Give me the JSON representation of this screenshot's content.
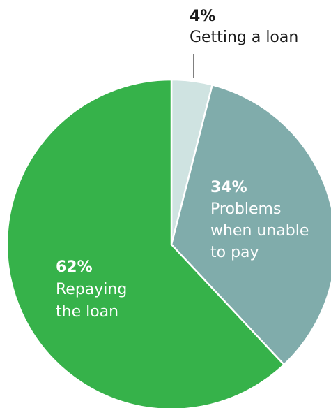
{
  "chart_data": {
    "type": "pie",
    "start_angle_deg": 0,
    "direction": "clockwise",
    "slices": [
      {
        "percent_label": "4%",
        "value": 4,
        "label_lines": [
          "Getting a loan"
        ],
        "color": "#cfe3e1",
        "text_color": "#1a1a1a"
      },
      {
        "percent_label": "34%",
        "value": 34,
        "label_lines": [
          "Problems",
          "when unable",
          "to pay"
        ],
        "color": "#80acab",
        "text_color": "#ffffff"
      },
      {
        "percent_label": "62%",
        "value": 62,
        "label_lines": [
          "Repaying",
          "the loan"
        ],
        "color": "#36b24a",
        "text_color": "#ffffff"
      }
    ],
    "slice_separator_color": "#ffffff"
  }
}
